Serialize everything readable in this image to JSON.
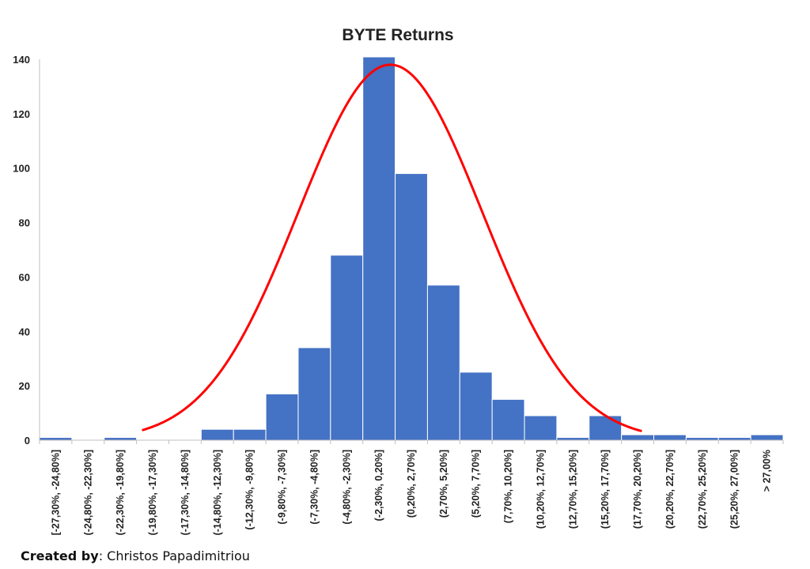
{
  "chart_data": {
    "type": "bar",
    "title": "BYTE Returns",
    "xlabel": "",
    "ylabel": "",
    "ylim": [
      0,
      140
    ],
    "yticks": [
      0,
      20,
      40,
      60,
      80,
      100,
      120,
      140
    ],
    "grid": false,
    "legend": "none",
    "categories": [
      "[-27,30%, -24,80%]",
      "(-24,80%, -22,30%]",
      "(-22,30%, -19,80%]",
      "(-19,80%, -17,30%]",
      "(-17,30%, -14,80%]",
      "(-14,80%, -12,30%]",
      "(-12,30%, -9,80%]",
      "(-9,80%, -7,30%]",
      "(-7,30%, -4,80%]",
      "(-4,80%, -2,30%]",
      "(-2,30%, 0,20%]",
      "(0,20%, 2,70%]",
      "(2,70%, 5,20%]",
      "(5,20%, 7,70%]",
      "(7,70%, 10,20%]",
      "(10,20%, 12,70%]",
      "(12,70%, 15,20%]",
      "(15,20%, 17,70%]",
      "(17,70%, 20,20%]",
      "(20,20%, 22,70%]",
      "(22,70%, 25,20%]",
      "(25,20%, 27,00%]",
      "> 27,00%"
    ],
    "values": [
      1,
      0,
      1,
      0,
      0,
      4,
      4,
      17,
      34,
      68,
      141,
      98,
      57,
      25,
      15,
      9,
      1,
      9,
      2,
      2,
      1,
      1,
      2
    ],
    "curve": {
      "type": "normal-fit",
      "peak_value": 138,
      "peak_category_position": 10.85,
      "sigma_categories": 2.85,
      "start_category_position": 3.2,
      "end_category_position": 18.6
    },
    "colors": {
      "bar": "#4472C4",
      "bar_border": "#ffffff",
      "curve": "#FF0000",
      "axis": "#BFBFBF"
    }
  },
  "footer": {
    "credit_label": "Created by",
    "credit_name": ": Christos Papadimitriou"
  }
}
